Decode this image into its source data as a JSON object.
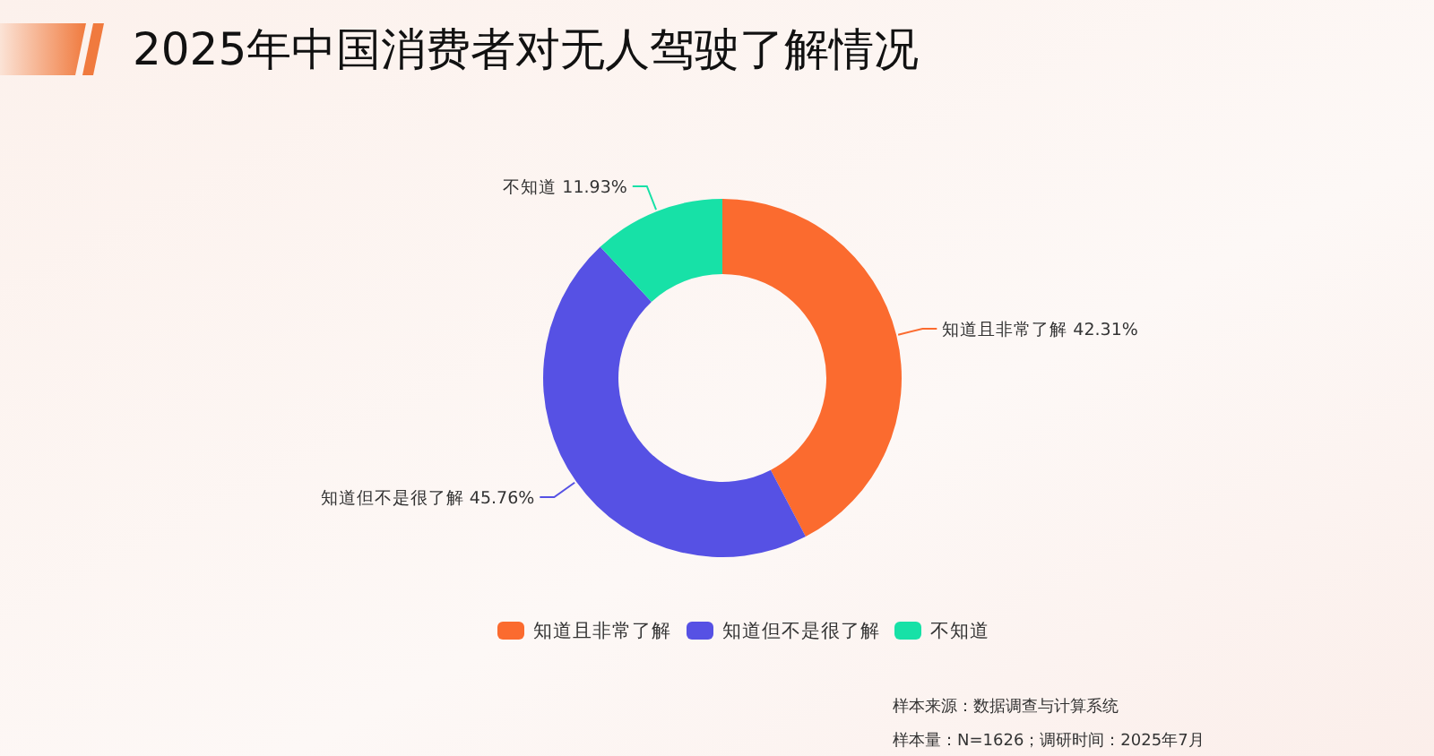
{
  "chart_data": {
    "type": "donut",
    "title": "2025年中国消费者对无人驾驶了解情况",
    "categories": [
      "知道且非常了解",
      "知道但不是很了解",
      "不知道"
    ],
    "values": [
      42.31,
      45.76,
      11.93
    ],
    "value_labels": [
      "42.31%",
      "45.76%",
      "11.93%"
    ],
    "colors": [
      "#fb6b2f",
      "#5651e4",
      "#17e1a7"
    ],
    "legend": "bottom",
    "annotations": [
      "样本来源：数据调查与计算系统",
      "样本量：N=1626；调研时间：2025年7月"
    ]
  }
}
